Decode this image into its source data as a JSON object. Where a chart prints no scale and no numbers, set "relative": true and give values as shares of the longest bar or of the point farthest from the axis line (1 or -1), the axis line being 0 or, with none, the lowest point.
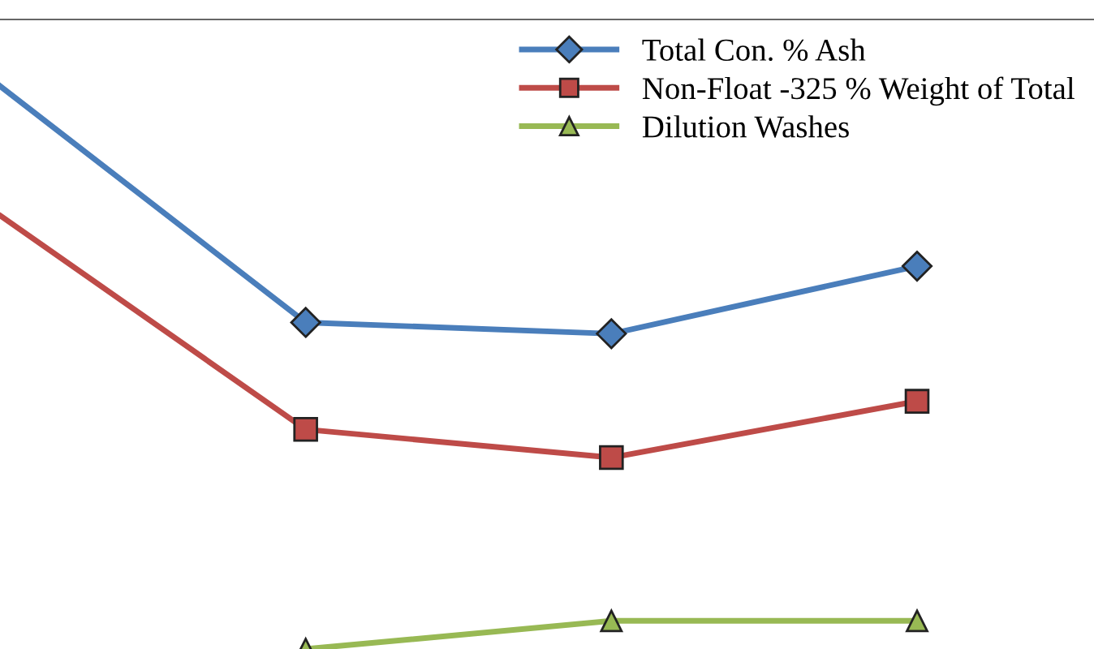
{
  "chart_data": {
    "type": "line",
    "relative": true,
    "categories": [
      null,
      null,
      null,
      null
    ],
    "legend": "top right",
    "grid": false,
    "line_style": "solid",
    "series": [
      {
        "name": "Total Con. % Ash",
        "color": "#4a7ebb",
        "marker": "diamond",
        "values": [
          1,
          0.58,
          0.56,
          0.68
        ]
      },
      {
        "name": "Non-Float -325 % Weight of Total",
        "color": "#be4b48",
        "marker": "square",
        "values": [
          0.77,
          0.39,
          0.34,
          0.44
        ]
      },
      {
        "name": "Dilution Washes",
        "color": "#98b954",
        "marker": "triangle",
        "values": [
          null,
          0,
          0.05,
          0.05
        ]
      }
    ]
  }
}
